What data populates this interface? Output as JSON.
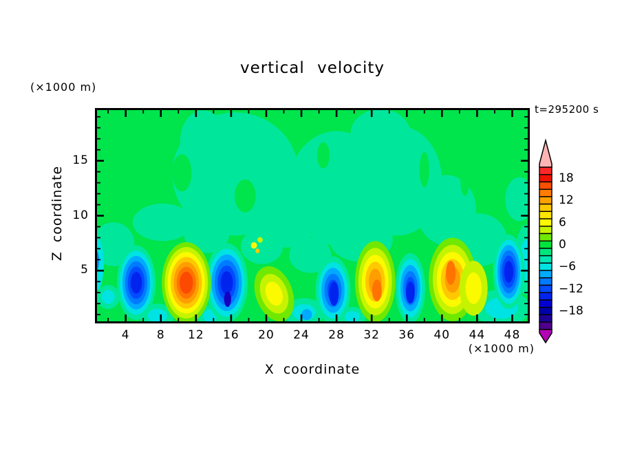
{
  "window": {
    "background": "#ffffff"
  },
  "chart_data": {
    "type": "filled_contour",
    "title": "vertical velocity",
    "time_annotation": "t=295200 s",
    "x_axis": {
      "label": "X coordinate",
      "unit_label": "(×1000 m)",
      "major_ticks": [
        4,
        8,
        12,
        16,
        20,
        24,
        28,
        32,
        36,
        40,
        44,
        48
      ],
      "minor_tick_step": 2,
      "range": [
        0.5,
        50
      ]
    },
    "z_axis": {
      "label": "Z coordinate",
      "unit_label": "(×1000 m)",
      "major_ticks": [
        5,
        10,
        15
      ],
      "minor_tick_step": 1,
      "range": [
        0.2,
        19.8
      ]
    },
    "colorbar": {
      "segment_span": 2,
      "value_top": 22,
      "value_bottom": -22,
      "labels": [
        "18",
        "12",
        "6",
        "0",
        "−6",
        "−12",
        "−18"
      ],
      "colors_top_to_bottom": [
        "#fc2828",
        "#f21200",
        "#fc5000",
        "#ff7c00",
        "#ffa200",
        "#ffc800",
        "#ffe600",
        "#fcfa00",
        "#c6f400",
        "#70e800",
        "#00e43c",
        "#00e77d",
        "#00e6b4",
        "#00e3e3",
        "#00aaff",
        "#007aff",
        "#004cff",
        "#0024ee",
        "#0000d2",
        "#0000aa",
        "#1e0096",
        "#50008c"
      ],
      "over_arrow_color": "#ffb4b4",
      "under_arrow_color": "#b400b4"
    },
    "field": {
      "background_note": "weak vertical motion aloft: green 0..2 band with sea-green −2..0 patches above z≈9; convective cells below z≈8",
      "updrafts": [
        {
          "x": 10.9,
          "z": 3.9,
          "peak_w": 17
        },
        {
          "x": 20.9,
          "z": 2.9,
          "peak_w": 7
        },
        {
          "x": 32.4,
          "z": 3.5,
          "peak_w": 15
        },
        {
          "x": 41.1,
          "z": 4.5,
          "peak_w": 15
        },
        {
          "x": 43.6,
          "z": 3.4,
          "peak_w": 7
        }
      ],
      "downdrafts": [
        {
          "x": 5.2,
          "z": 3.9,
          "peak_w": -13
        },
        {
          "x": 15.5,
          "z": 3.9,
          "peak_w": -15
        },
        {
          "x": 27.6,
          "z": 3.2,
          "peak_w": -13
        },
        {
          "x": 36.4,
          "z": 3.4,
          "peak_w": -13
        },
        {
          "x": 47.6,
          "z": 4.9,
          "peak_w": -13
        }
      ]
    }
  },
  "palette": {
    "bg": "#00e44c",
    "mint": "#00e79b",
    "cyan": "#00e3e3",
    "sky": "#00aaff",
    "azure": "#007aff",
    "blue": "#004cff",
    "deepblue": "#0024ee",
    "navy": "#1600c0",
    "lime": "#70e800",
    "chartreuse": "#c6f400",
    "yellow": "#fcfa00",
    "gold": "#ffc800",
    "orange": "#ff9e00",
    "deeporange": "#ff7400",
    "redorange": "#fc4a00"
  },
  "blobs": [
    {
      "x": 16.5,
      "z": 13.8,
      "rx": 7.2,
      "rz": 5.6,
      "colors": [
        "mint"
      ]
    },
    {
      "x": 12.8,
      "z": 16.8,
      "rx": 2.6,
      "rz": 2.8,
      "colors": [
        "mint"
      ]
    },
    {
      "x": 22.5,
      "z": 9.5,
      "rx": 3.2,
      "rz": 2.4,
      "colors": [
        "mint"
      ]
    },
    {
      "x": 28.0,
      "z": 12.5,
      "rx": 5.5,
      "rz": 5.2,
      "colors": [
        "mint"
      ]
    },
    {
      "x": 35.0,
      "z": 13.2,
      "rx": 5.0,
      "rz": 5.0,
      "colors": [
        "mint"
      ]
    },
    {
      "x": 40.5,
      "z": 10.5,
      "rx": 3.4,
      "rz": 3.2,
      "colors": [
        "mint"
      ]
    },
    {
      "x": 33.0,
      "z": 17.5,
      "rx": 3.4,
      "rz": 2.2,
      "colors": [
        "mint"
      ]
    },
    {
      "x": 8.2,
      "z": 9.4,
      "rx": 3.4,
      "rz": 1.7,
      "colors": [
        "mint"
      ]
    },
    {
      "x": 2.6,
      "z": 7.4,
      "rx": 2.4,
      "rz": 2.0,
      "colors": [
        "mint"
      ]
    },
    {
      "x": 13.2,
      "z": 8.4,
      "rx": 2.6,
      "rz": 1.8,
      "colors": [
        "mint"
      ]
    },
    {
      "x": 19.5,
      "z": 7.2,
      "rx": 2.4,
      "rz": 1.6,
      "colors": [
        "mint"
      ]
    },
    {
      "x": 25.0,
      "z": 6.4,
      "rx": 2.4,
      "rz": 1.6,
      "colors": [
        "mint"
      ]
    },
    {
      "x": 30.8,
      "z": 7.8,
      "rx": 3.6,
      "rz": 2.0,
      "colors": [
        "mint"
      ]
    },
    {
      "x": 44.2,
      "z": 7.8,
      "rx": 3.2,
      "rz": 2.4,
      "colors": [
        "mint"
      ]
    },
    {
      "x": 48.8,
      "z": 11.5,
      "rx": 1.6,
      "rz": 2.0,
      "colors": [
        "mint"
      ]
    },
    {
      "x": 10.4,
      "z": 13.9,
      "rx": 1.1,
      "rz": 1.7,
      "colors": [
        "bg"
      ]
    },
    {
      "x": 17.6,
      "z": 11.8,
      "rx": 1.2,
      "rz": 1.5,
      "colors": [
        "bg"
      ]
    },
    {
      "x": 38.0,
      "z": 14.2,
      "rx": 0.55,
      "rz": 1.6,
      "colors": [
        "bg"
      ]
    },
    {
      "x": 42.6,
      "z": 13.2,
      "rx": 0.5,
      "rz": 1.4,
      "colors": [
        "bg"
      ]
    },
    {
      "x": 26.5,
      "z": 15.5,
      "rx": 0.7,
      "rz": 1.2,
      "colors": [
        "bg"
      ]
    },
    {
      "x": 7.6,
      "z": 0.9,
      "rx": 1.9,
      "rz": 1.1,
      "colors": [
        "mint",
        "cyan"
      ]
    },
    {
      "x": 13.6,
      "z": 0.9,
      "rx": 1.4,
      "rz": 1.0,
      "colors": [
        "mint",
        "cyan"
      ]
    },
    {
      "x": 24.3,
      "z": 1.2,
      "rx": 2.3,
      "rz": 1.3,
      "colors": [
        "mint",
        "cyan"
      ]
    },
    {
      "x": 24.6,
      "z": 1.0,
      "rx": 0.6,
      "rz": 0.5,
      "colors": [
        "sky"
      ]
    },
    {
      "x": 29.8,
      "z": 0.8,
      "rx": 1.5,
      "rz": 0.9,
      "colors": [
        "mint",
        "cyan"
      ]
    },
    {
      "x": 2.0,
      "z": 2.6,
      "rx": 1.3,
      "rz": 1.1,
      "colors": [
        "mint",
        "cyan"
      ]
    },
    {
      "x": 46.8,
      "z": 1.6,
      "rx": 3.2,
      "rz": 1.7,
      "colors": [
        "mint",
        "cyan"
      ]
    },
    {
      "x": 49.6,
      "z": 6.0,
      "rx": 1.3,
      "rz": 3.2,
      "colors": [
        "mint",
        "cyan"
      ]
    },
    {
      "x": 0.7,
      "z": 5.6,
      "rx": 0.8,
      "rz": 2.4,
      "colors": [
        "cyan"
      ]
    },
    {
      "x": 0.6,
      "z": 5.9,
      "rx": 0.35,
      "rz": 1.0,
      "colors": [
        "azure"
      ]
    },
    {
      "x": 5.2,
      "z": 3.9,
      "rx": 2.2,
      "rz": 3.4,
      "colors": [
        "mint",
        "cyan",
        "sky",
        "azure",
        "blue",
        "deepblue"
      ]
    },
    {
      "x": 15.5,
      "z": 3.9,
      "rx": 2.4,
      "rz": 3.6,
      "colors": [
        "mint",
        "cyan",
        "sky",
        "azure",
        "blue",
        "deepblue"
      ]
    },
    {
      "x": 15.6,
      "z": 2.4,
      "rx": 0.4,
      "rz": 0.7,
      "colors": [
        "navy"
      ]
    },
    {
      "x": 27.6,
      "z": 3.2,
      "rx": 2.0,
      "rz": 3.1,
      "colors": [
        "mint",
        "cyan",
        "sky",
        "azure",
        "blue"
      ]
    },
    {
      "x": 27.7,
      "z": 2.9,
      "rx": 0.55,
      "rz": 1.1,
      "colors": [
        "deepblue"
      ]
    },
    {
      "x": 36.4,
      "z": 3.4,
      "rx": 1.7,
      "rz": 3.2,
      "colors": [
        "mint",
        "cyan",
        "sky",
        "azure",
        "blue"
      ]
    },
    {
      "x": 36.4,
      "z": 3.0,
      "rx": 0.5,
      "rz": 1.0,
      "colors": [
        "deepblue"
      ]
    },
    {
      "x": 47.6,
      "z": 4.9,
      "rx": 1.8,
      "rz": 3.4,
      "colors": [
        "mint",
        "cyan",
        "sky",
        "azure",
        "blue",
        "deepblue"
      ]
    },
    {
      "x": 10.9,
      "z": 3.9,
      "rx": 2.8,
      "rz": 3.7,
      "colors": [
        "lime",
        "chartreuse",
        "yellow",
        "gold",
        "orange",
        "deeporange",
        "redorange"
      ]
    },
    {
      "x": 20.9,
      "z": 2.9,
      "rx": 2.1,
      "rz": 2.6,
      "rot": -20,
      "colors": [
        "lime",
        "chartreuse",
        "yellow"
      ]
    },
    {
      "x": 32.4,
      "z": 4.0,
      "rx": 2.3,
      "rz": 3.7,
      "colors": [
        "lime",
        "chartreuse",
        "yellow",
        "gold",
        "orange"
      ]
    },
    {
      "x": 32.6,
      "z": 3.2,
      "rx": 0.55,
      "rz": 1.0,
      "colors": [
        "deeporange"
      ]
    },
    {
      "x": 41.2,
      "z": 4.2,
      "rx": 2.7,
      "rz": 3.8,
      "colors": [
        "lime",
        "chartreuse",
        "yellow",
        "gold",
        "orange"
      ]
    },
    {
      "x": 41.0,
      "z": 4.8,
      "rx": 0.55,
      "rz": 1.1,
      "colors": [
        "deeporange"
      ]
    },
    {
      "x": 43.6,
      "z": 3.4,
      "rx": 1.6,
      "rz": 2.5,
      "colors": [
        "chartreuse",
        "yellow"
      ]
    },
    {
      "x": 18.6,
      "z": 7.3,
      "rx": 0.35,
      "rz": 0.3,
      "colors": [
        "yellow"
      ]
    },
    {
      "x": 19.3,
      "z": 7.8,
      "rx": 0.3,
      "rz": 0.25,
      "colors": [
        "chartreuse"
      ]
    },
    {
      "x": 19.0,
      "z": 6.8,
      "rx": 0.22,
      "rz": 0.22,
      "colors": [
        "gold"
      ]
    }
  ]
}
